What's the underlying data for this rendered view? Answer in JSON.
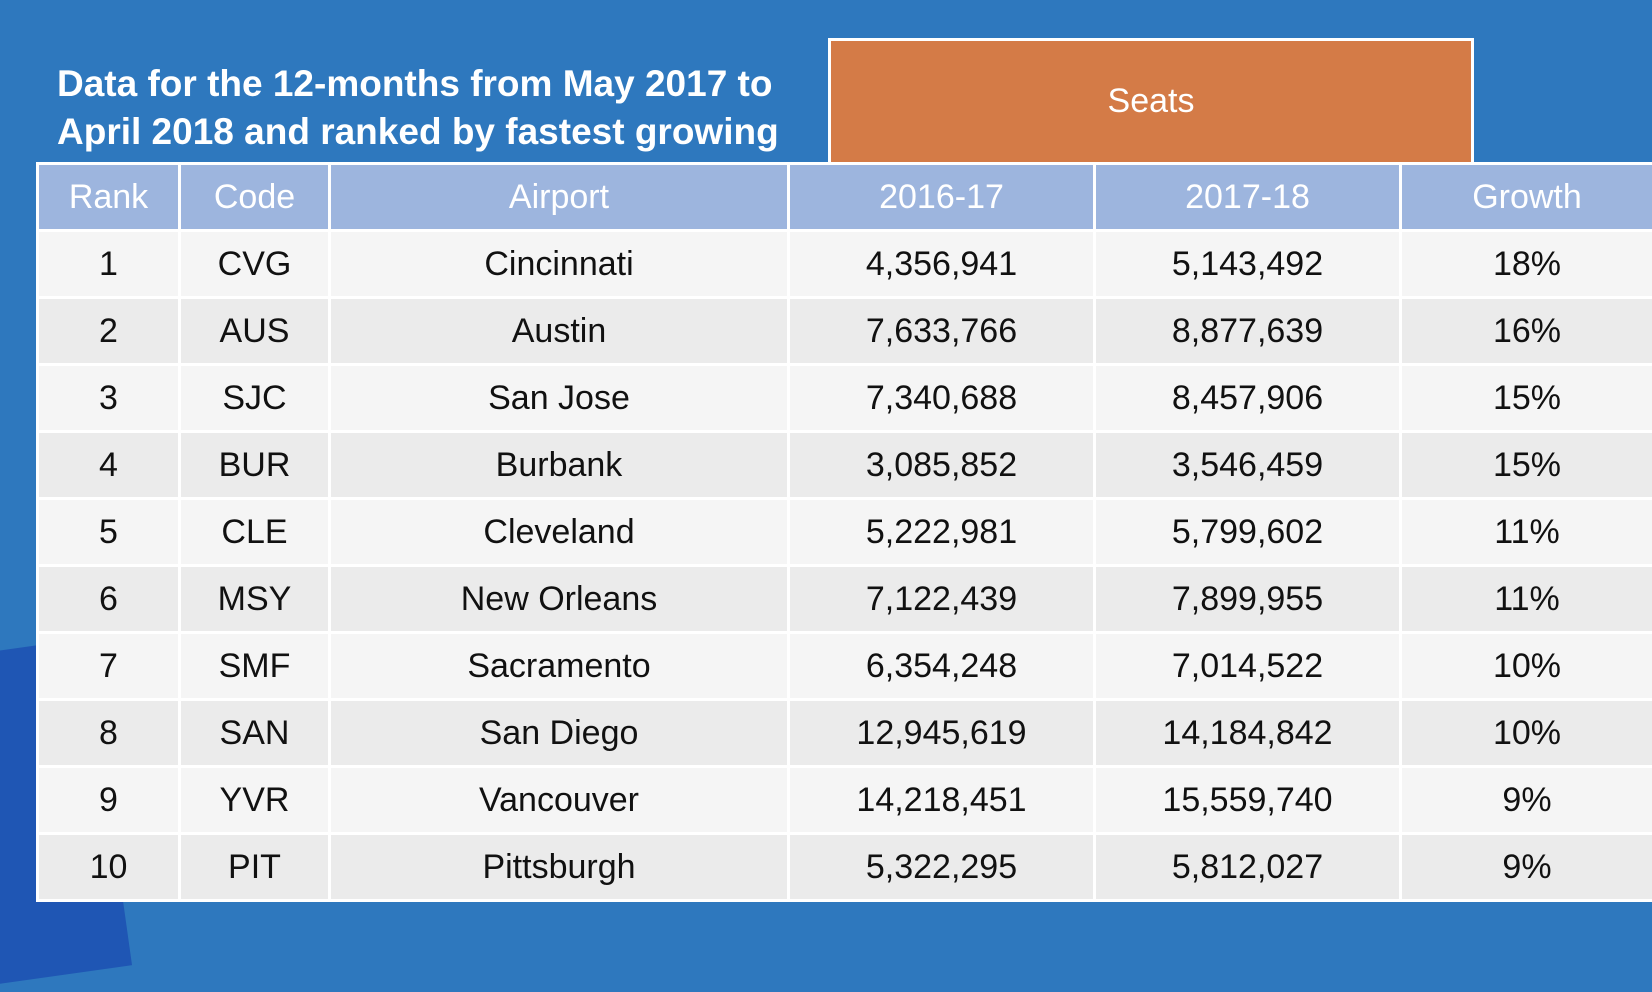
{
  "title": "Data for the 12-months from May 2017 to\nApril 2018 and ranked by fastest growing",
  "group_header": "Seats",
  "colors": {
    "background": "#2e78be",
    "seats_header": "#d47b47",
    "column_header": "#9db5de",
    "row_light": "#f5f5f5",
    "row_alt": "#ebebeb"
  },
  "chart_data": {
    "type": "table",
    "title": "Data for the 12-months from May 2017 to April 2018 and ranked by fastest growing",
    "group_headers": [
      {
        "label": "Seats",
        "columns": [
          "2016-17",
          "2017-18"
        ]
      }
    ],
    "columns": [
      "Rank",
      "Code",
      "Airport",
      "2016-17",
      "2017-18",
      "Growth"
    ],
    "rows": [
      [
        "1",
        "CVG",
        "Cincinnati",
        "4,356,941",
        "5,143,492",
        "18%"
      ],
      [
        "2",
        "AUS",
        "Austin",
        "7,633,766",
        "8,877,639",
        "16%"
      ],
      [
        "3",
        "SJC",
        "San Jose",
        "7,340,688",
        "8,457,906",
        "15%"
      ],
      [
        "4",
        "BUR",
        "Burbank",
        "3,085,852",
        "3,546,459",
        "15%"
      ],
      [
        "5",
        "CLE",
        "Cleveland",
        "5,222,981",
        "5,799,602",
        "11%"
      ],
      [
        "6",
        "MSY",
        "New Orleans",
        "7,122,439",
        "7,899,955",
        "11%"
      ],
      [
        "7",
        "SMF",
        "Sacramento",
        "6,354,248",
        "7,014,522",
        "10%"
      ],
      [
        "8",
        "SAN",
        "San Diego",
        "12,945,619",
        "14,184,842",
        "10%"
      ],
      [
        "9",
        "YVR",
        "Vancouver",
        "14,218,451",
        "15,559,740",
        "9%"
      ],
      [
        "10",
        "PIT",
        "Pittsburgh",
        "5,322,295",
        "5,812,027",
        "9%"
      ]
    ]
  }
}
